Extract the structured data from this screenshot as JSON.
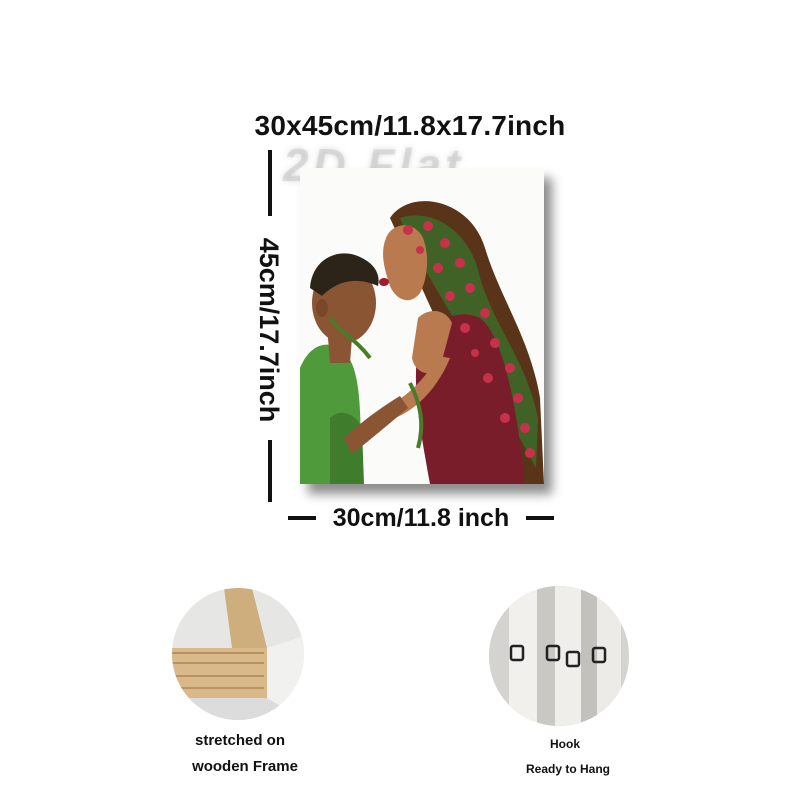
{
  "dimensions": {
    "title": "30x45cm/11.8x17.7inch",
    "height_label": "45cm/17.7inch",
    "width_label": "30cm/11.8 inch"
  },
  "watermark": "2D Flat",
  "artwork": {
    "subject": "Mother kissing son's forehead with flowers in her hair",
    "colors": {
      "shirt": "#4f9a3a",
      "dress": "#7a1d2b",
      "hair": "#5a3418",
      "leaves": "#3d6b2a",
      "flowers": "#c8314a",
      "skin": "#b97a4f"
    }
  },
  "features": [
    {
      "line1": "stretched on",
      "line2": "wooden Frame",
      "icon": "wooden-frame-photo"
    },
    {
      "line1": "Hook",
      "line2": "Ready to Hang",
      "icon": "hook-photo"
    }
  ]
}
